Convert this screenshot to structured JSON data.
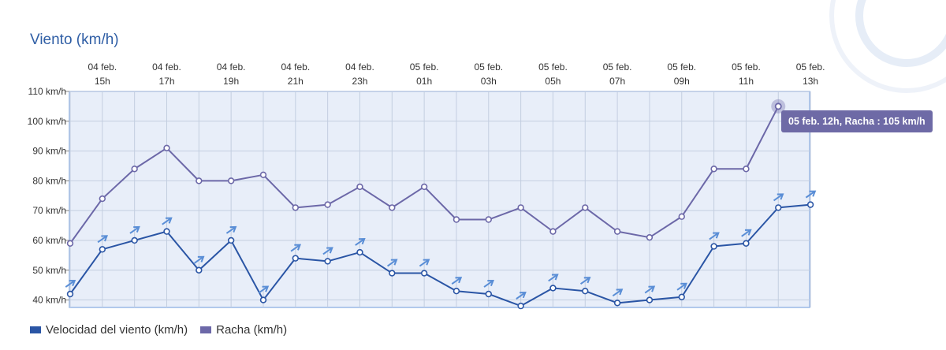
{
  "chart_data": {
    "type": "line",
    "title": "Viento (km/h)",
    "x": [
      "04 feb. 14h",
      "04 feb. 15h",
      "04 feb. 16h",
      "04 feb. 17h",
      "04 feb. 18h",
      "04 feb. 19h",
      "04 feb. 20h",
      "04 feb. 21h",
      "04 feb. 22h",
      "04 feb. 23h",
      "05 feb. 00h",
      "05 feb. 01h",
      "05 feb. 02h",
      "05 feb. 03h",
      "05 feb. 04h",
      "05 feb. 05h",
      "05 feb. 06h",
      "05 feb. 07h",
      "05 feb. 08h",
      "05 feb. 09h",
      "05 feb. 10h",
      "05 feb. 11h",
      "05 feb. 12h",
      "05 feb. 13h"
    ],
    "x_tick_labels": [
      {
        "date": "04 feb.",
        "hour": "15h",
        "index": 1
      },
      {
        "date": "04 feb.",
        "hour": "17h",
        "index": 3
      },
      {
        "date": "04 feb.",
        "hour": "19h",
        "index": 5
      },
      {
        "date": "04 feb.",
        "hour": "21h",
        "index": 7
      },
      {
        "date": "04 feb.",
        "hour": "23h",
        "index": 9
      },
      {
        "date": "05 feb.",
        "hour": "01h",
        "index": 11
      },
      {
        "date": "05 feb.",
        "hour": "03h",
        "index": 13
      },
      {
        "date": "05 feb.",
        "hour": "05h",
        "index": 15
      },
      {
        "date": "05 feb.",
        "hour": "07h",
        "index": 17
      },
      {
        "date": "05 feb.",
        "hour": "09h",
        "index": 19
      },
      {
        "date": "05 feb.",
        "hour": "11h",
        "index": 21
      },
      {
        "date": "05 feb.",
        "hour": "13h",
        "index": 23
      }
    ],
    "y_ticks": [
      "40 km/h",
      "50 km/h",
      "60 km/h",
      "70 km/h",
      "80 km/h",
      "90 km/h",
      "100 km/h",
      "110 km/h"
    ],
    "y_tick_values": [
      40,
      50,
      60,
      70,
      80,
      90,
      100,
      110
    ],
    "ylim": [
      37.5,
      110
    ],
    "grid": true,
    "legend_position": "bottom-left",
    "series": [
      {
        "name": "Velocidad del viento (km/h)",
        "color": "#2a55a5",
        "values": [
          42,
          57,
          60,
          63,
          50,
          60,
          40,
          54,
          53,
          56,
          49,
          49,
          43,
          42,
          38,
          44,
          43,
          39,
          40,
          41,
          58,
          59,
          71,
          72
        ]
      },
      {
        "name": "Racha (km/h)",
        "color": "#6c68a8",
        "values": [
          59,
          74,
          84,
          91,
          80,
          80,
          82,
          71,
          72,
          78,
          71,
          78,
          67,
          67,
          71,
          63,
          71,
          63,
          61,
          68,
          84,
          84,
          105,
          null
        ]
      }
    ],
    "wind_direction_arrows": "arrows-pointing-northeast",
    "tooltip": {
      "text": "05 feb. 12h, Racha : 105 km/h",
      "series_index": 1,
      "point_index": 22
    }
  },
  "colors": {
    "plot_background": "#e8eef9",
    "plot_border": "#9ab8e6",
    "grid": "#c3cee0",
    "arrow": "#5a8ed6",
    "tooltip_bg": "#6e6aa6",
    "title": "#2f5ea5"
  },
  "legend": {
    "items": [
      {
        "label": "Velocidad del viento (km/h)",
        "color": "#2a55a5"
      },
      {
        "label": "Racha (km/h)",
        "color": "#6c68a8"
      }
    ]
  }
}
